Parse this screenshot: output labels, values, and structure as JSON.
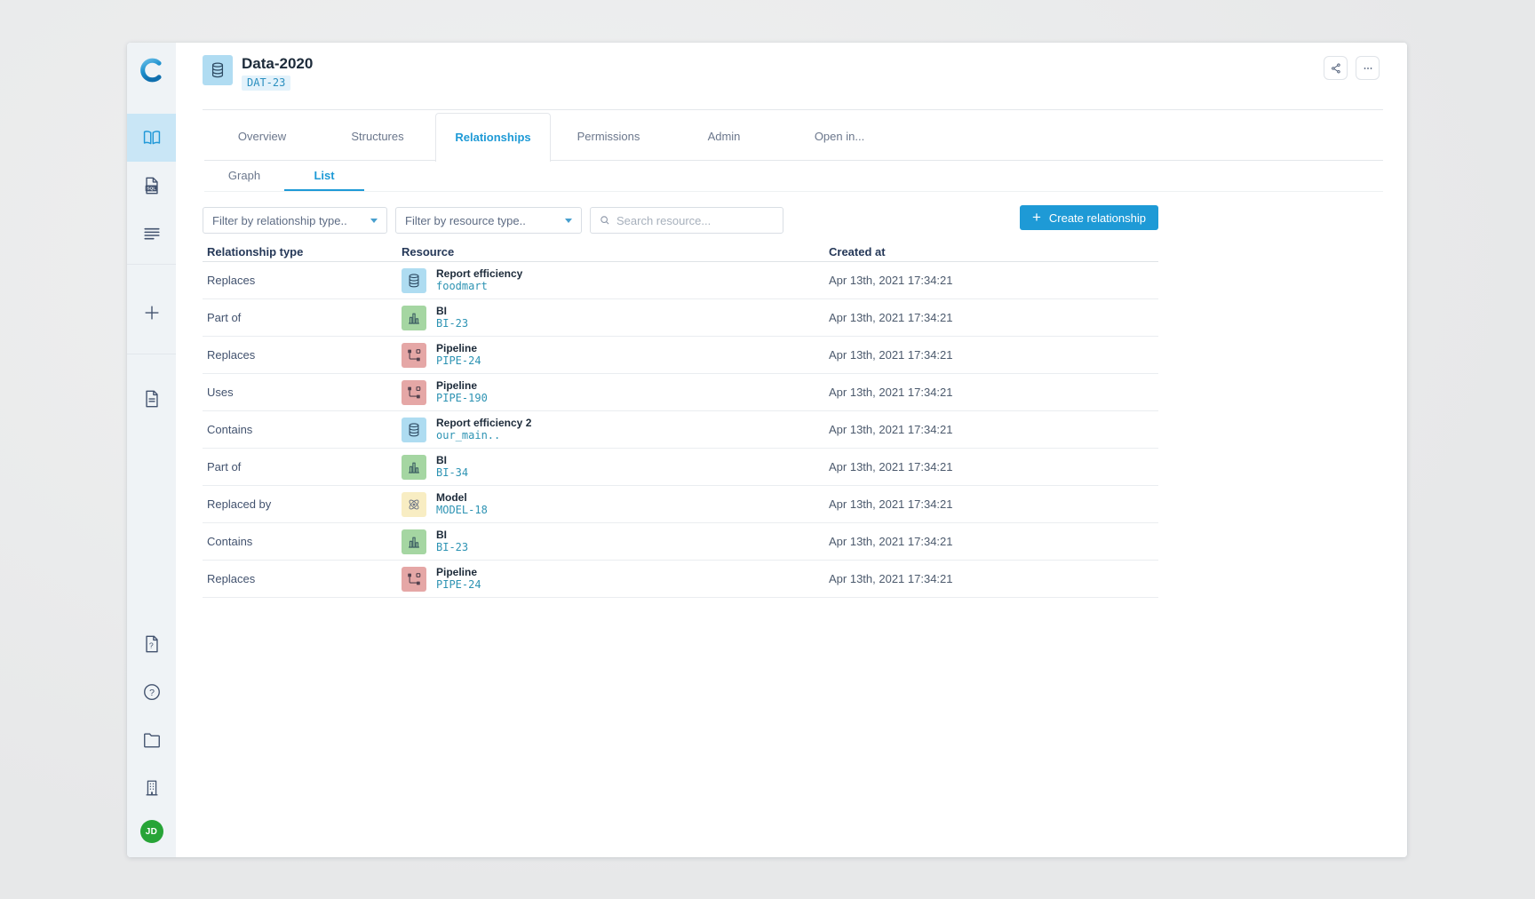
{
  "colors": {
    "accent_blue": "#1e9ad6",
    "code_teal": "#2d93b3",
    "avatar_green": "#27a437",
    "active_nav_bg": "#c9e6f6"
  },
  "sidebar": {
    "logo_label": "C",
    "items_top": [
      {
        "id": "catalog",
        "icon": "book-icon",
        "active": true
      },
      {
        "id": "sql-editor",
        "icon": "sql-file-icon",
        "active": false
      },
      {
        "id": "queries",
        "icon": "lines-icon",
        "active": false
      },
      {
        "id": "add",
        "icon": "plus-icon",
        "active": false,
        "divider_before": true
      },
      {
        "id": "pages",
        "icon": "doc-icon",
        "active": false,
        "divider_before": true
      }
    ],
    "items_bottom": [
      {
        "id": "doc-help",
        "icon": "doc-question-icon",
        "active": false
      },
      {
        "id": "help",
        "icon": "question-circle-icon",
        "active": false
      },
      {
        "id": "workspace",
        "icon": "folder-icon",
        "active": false
      },
      {
        "id": "organization",
        "icon": "building-icon",
        "active": false
      }
    ],
    "avatar": {
      "initials": "JD",
      "color": "#27a437"
    }
  },
  "header": {
    "title": "Data-2020",
    "badge": "DAT-23",
    "resource_icon": "database-icon"
  },
  "header_actions": [
    {
      "id": "share",
      "icon": "share-icon"
    },
    {
      "id": "more-options",
      "icon": "ellipsis-icon"
    }
  ],
  "tabs": [
    {
      "label": "Overview",
      "active": false
    },
    {
      "label": "Structures",
      "active": false
    },
    {
      "label": "Relationships",
      "active": true
    },
    {
      "label": "Permissions",
      "active": false
    },
    {
      "label": "Admin",
      "active": false
    },
    {
      "label": "Open in...",
      "active": false
    }
  ],
  "subtabs": [
    {
      "label": "Graph",
      "active": false
    },
    {
      "label": "List",
      "active": true
    }
  ],
  "filters": {
    "relationship_type_placeholder": "Filter by relationship type..",
    "resource_type_placeholder": "Filter by resource type..",
    "search_placeholder": "Search resource...",
    "create_button": "Create relationship"
  },
  "resource_kinds": {
    "data": {
      "icon": "database-icon",
      "bg": "#aedcf1",
      "fg": "#2e4b63"
    },
    "bi": {
      "icon": "bar-chart-icon",
      "bg": "#a5d6a2",
      "fg": "#3c5e63"
    },
    "pipeline": {
      "icon": "pipeline-icon",
      "bg": "#e5a7a6",
      "fg": "#53424e"
    },
    "model": {
      "icon": "atom-icon",
      "bg": "#f8edc3",
      "fg": "#6e7687"
    }
  },
  "table": {
    "columns": [
      "Relationship type",
      "Resource",
      "Created at"
    ],
    "rows": [
      {
        "type": "Replaces",
        "kind": "data",
        "resource_name": "Report efficiency",
        "resource_code": "foodmart",
        "created": "Apr 13th, 2021 17:34:21"
      },
      {
        "type": "Part of",
        "kind": "bi",
        "resource_name": "BI",
        "resource_code": "BI-23",
        "created": "Apr 13th, 2021 17:34:21"
      },
      {
        "type": "Replaces",
        "kind": "pipeline",
        "resource_name": "Pipeline",
        "resource_code": "PIPE-24",
        "created": "Apr 13th, 2021 17:34:21"
      },
      {
        "type": "Uses",
        "kind": "pipeline",
        "resource_name": "Pipeline",
        "resource_code": "PIPE-190",
        "created": "Apr 13th, 2021 17:34:21"
      },
      {
        "type": "Contains",
        "kind": "data",
        "resource_name": "Report efficiency 2",
        "resource_code": "our_main..",
        "created": "Apr 13th, 2021 17:34:21"
      },
      {
        "type": "Part of",
        "kind": "bi",
        "resource_name": "BI",
        "resource_code": "BI-34",
        "created": "Apr 13th, 2021 17:34:21"
      },
      {
        "type": "Replaced by",
        "kind": "model",
        "resource_name": "Model",
        "resource_code": "MODEL-18",
        "created": "Apr 13th, 2021 17:34:21"
      },
      {
        "type": "Contains",
        "kind": "bi",
        "resource_name": "BI",
        "resource_code": "BI-23",
        "created": "Apr 13th, 2021 17:34:21"
      },
      {
        "type": "Replaces",
        "kind": "pipeline",
        "resource_name": "Pipeline",
        "resource_code": "PIPE-24",
        "created": "Apr 13th, 2021 17:34:21"
      }
    ]
  }
}
